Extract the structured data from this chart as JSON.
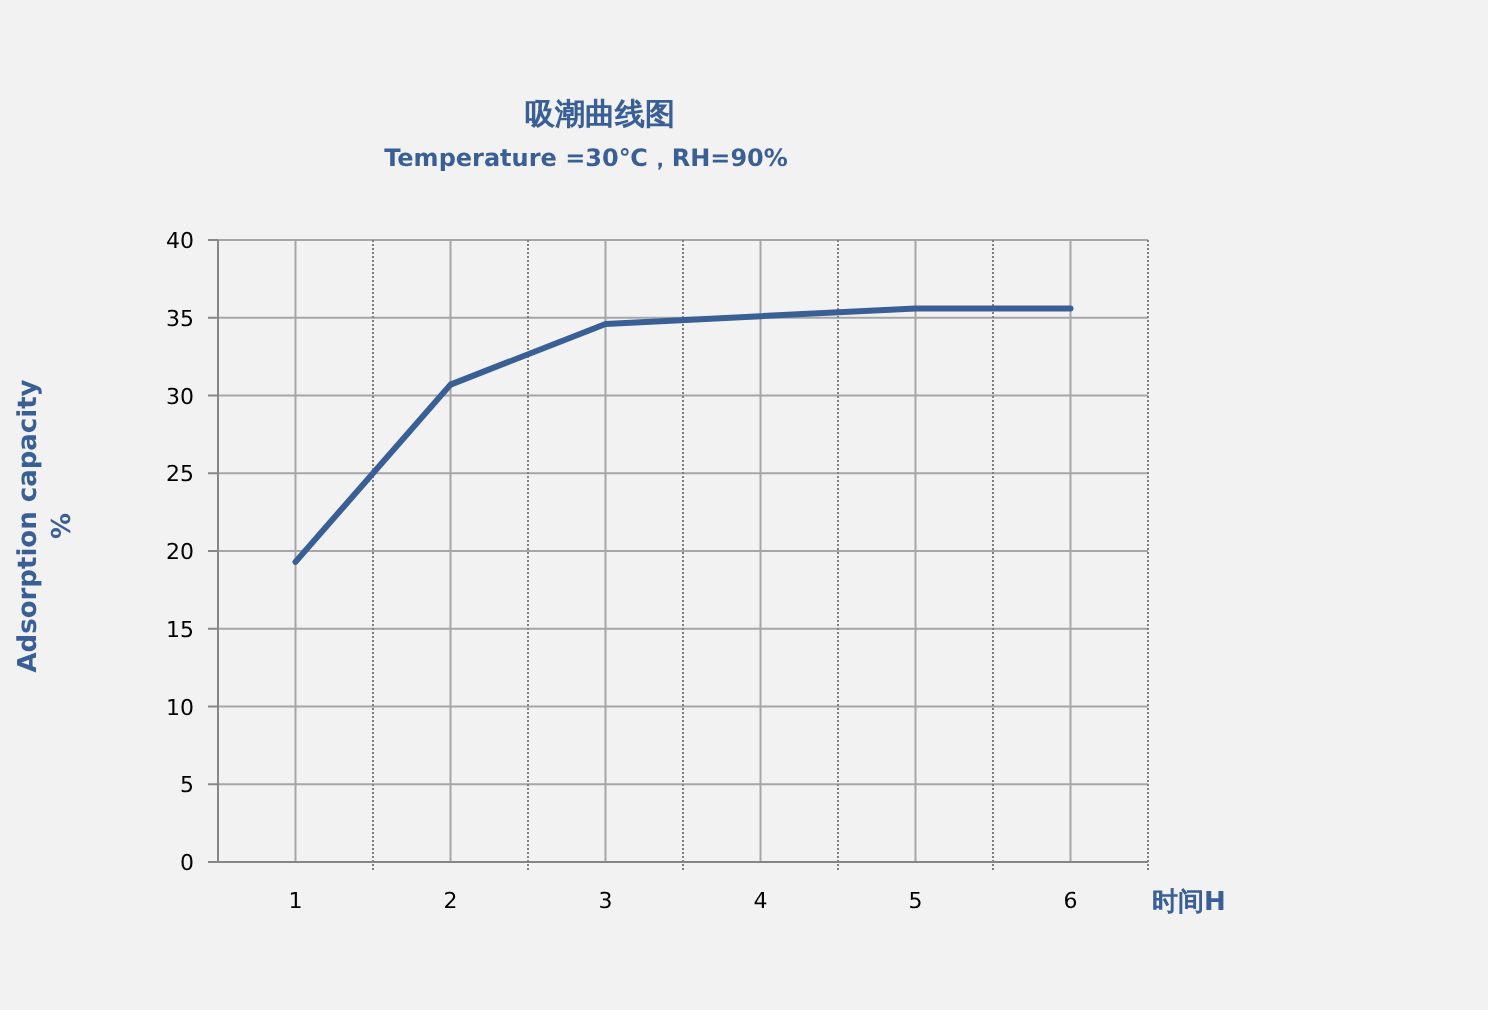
{
  "chart_data": {
    "type": "line",
    "title": "吸潮曲线图",
    "subtitle": "Temperature =30℃，RH=90%",
    "xlabel": "时间H",
    "ylabel": "Adsorption capacity\n%",
    "categories": [
      "1",
      "2",
      "3",
      "4",
      "5",
      "6"
    ],
    "series": [
      {
        "color": "#3a5f95",
        "values": [
          19.3,
          30.7,
          34.6,
          35.1,
          35.6,
          35.6
        ]
      }
    ],
    "ylim": [
      0,
      40
    ],
    "yticks": [
      0,
      5,
      10,
      15,
      20,
      25,
      30,
      35,
      40
    ],
    "grid": true,
    "marker": "none",
    "line_style": "solid"
  }
}
